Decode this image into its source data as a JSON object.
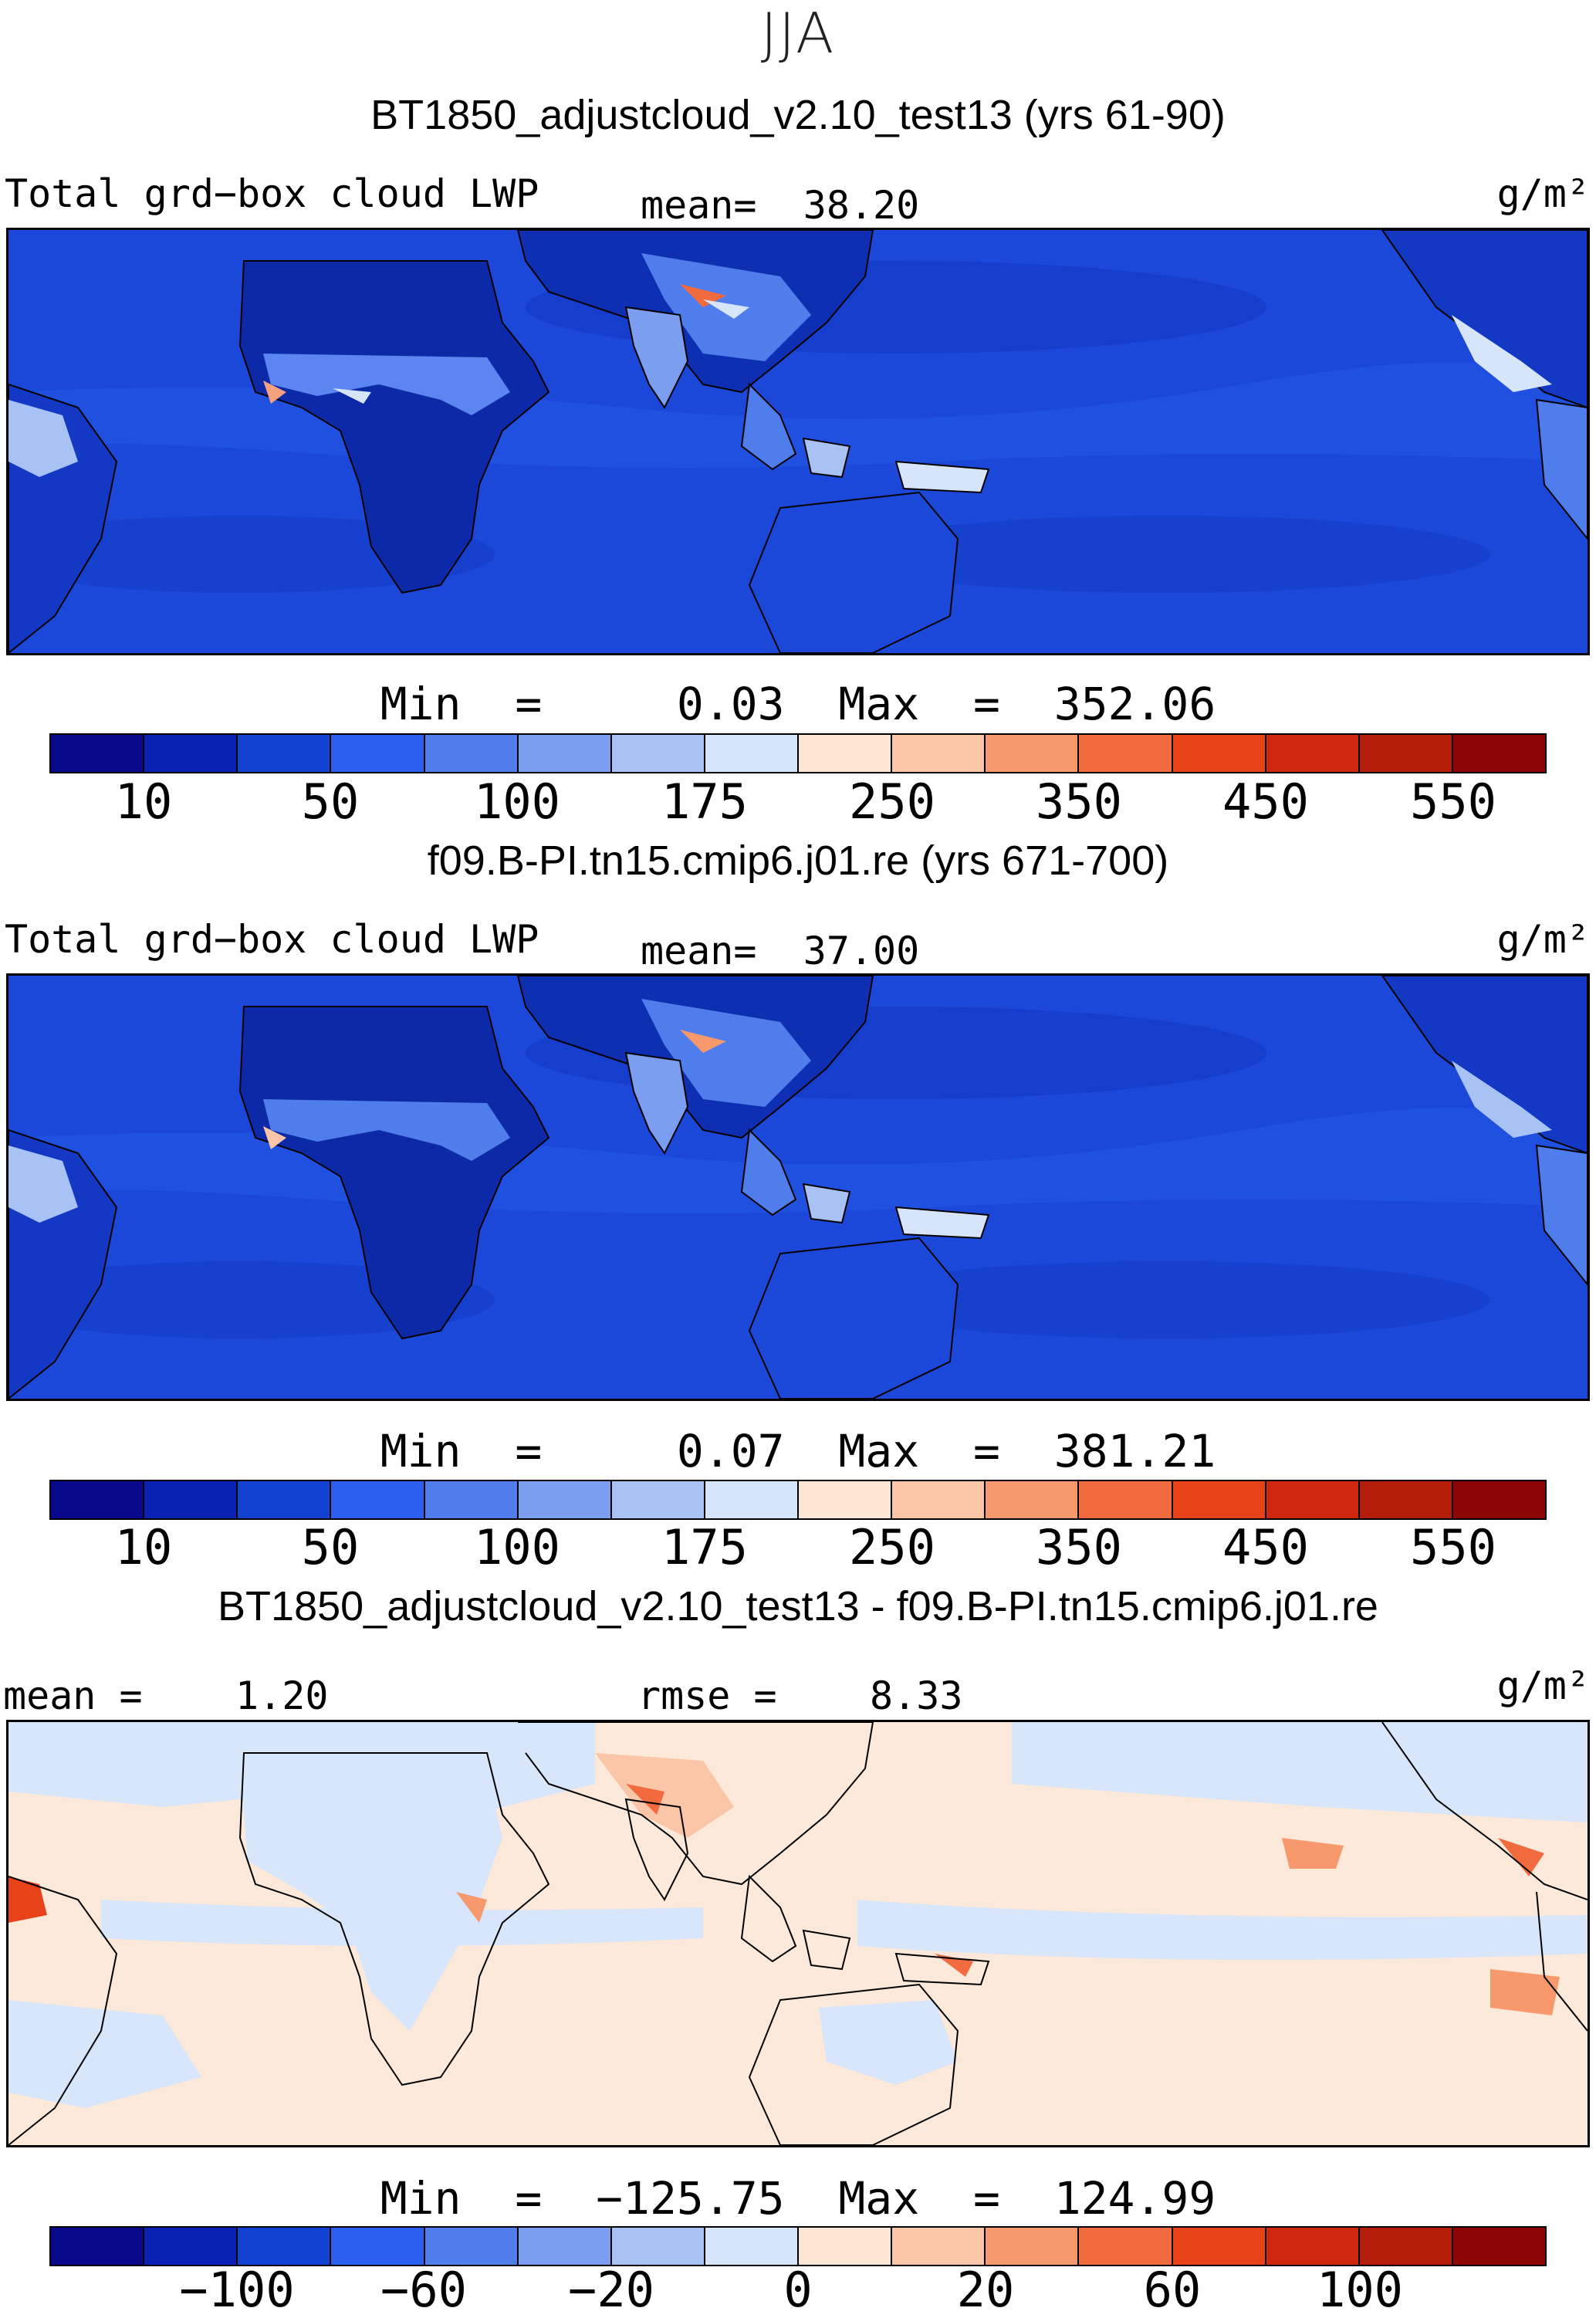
{
  "figure": {
    "title": "JJA",
    "units": "g/m²"
  },
  "colors": {
    "scale": [
      "#08088a",
      "#0a22b4",
      "#1142d2",
      "#2a5ff0",
      "#4f7deb",
      "#7b9ef0",
      "#a9c2f5",
      "#d6e5fa",
      "#fde7d4",
      "#fbc5a8",
      "#f7996d",
      "#f26b3f",
      "#e8421a",
      "#d0280e",
      "#b41d0a",
      "#8b0605"
    ],
    "ocean_bg": "#1a47d6",
    "land_bg": "#0f2fb0",
    "diff_bg": "#fde9da",
    "diff_cool": "#d8e6fb"
  },
  "chart_data": [
    {
      "type": "heatmap",
      "case": "BT1850_adjustcloud_v2.10_test13 (yrs 61-90)",
      "variable": "Total grd−box cloud LWP",
      "stat_label": "mean=",
      "stat_value": "38.20",
      "units": "g/m²",
      "min_label": "Min  =     0.03  Max  =  352.06",
      "min": 0.03,
      "max": 352.06,
      "colorbar_levels": [
        0,
        10,
        25,
        50,
        75,
        100,
        125,
        175,
        200,
        250,
        300,
        350,
        400,
        450,
        500,
        550,
        600
      ],
      "tick_labels": [
        "10",
        "50",
        "100",
        "175",
        "250",
        "350",
        "450",
        "550"
      ]
    },
    {
      "type": "heatmap",
      "case": "f09.B-PI.tn15.cmip6.j01.re (yrs 671-700)",
      "variable": "Total grd−box cloud LWP",
      "stat_label": "mean=",
      "stat_value": "37.00",
      "units": "g/m²",
      "min_label": "Min  =     0.07  Max  =  381.21",
      "min": 0.07,
      "max": 381.21,
      "colorbar_levels": [
        0,
        10,
        25,
        50,
        75,
        100,
        125,
        175,
        200,
        250,
        300,
        350,
        400,
        450,
        500,
        550,
        600
      ],
      "tick_labels": [
        "10",
        "50",
        "100",
        "175",
        "250",
        "350",
        "450",
        "550"
      ]
    },
    {
      "type": "heatmap",
      "case": "BT1850_adjustcloud_v2.10_test13 - f09.B-PI.tn15.cmip6.j01.re",
      "left_label": "mean =    1.20",
      "center_label": "rmse =    8.33",
      "mean": 1.2,
      "rmse": 8.33,
      "units": "g/m²",
      "min_label": "Min  =  −125.75  Max  =  124.99",
      "min": -125.75,
      "max": 124.99,
      "tick_labels": [
        "−100",
        "−60",
        "−20",
        "0",
        "20",
        "60",
        "100"
      ]
    }
  ]
}
